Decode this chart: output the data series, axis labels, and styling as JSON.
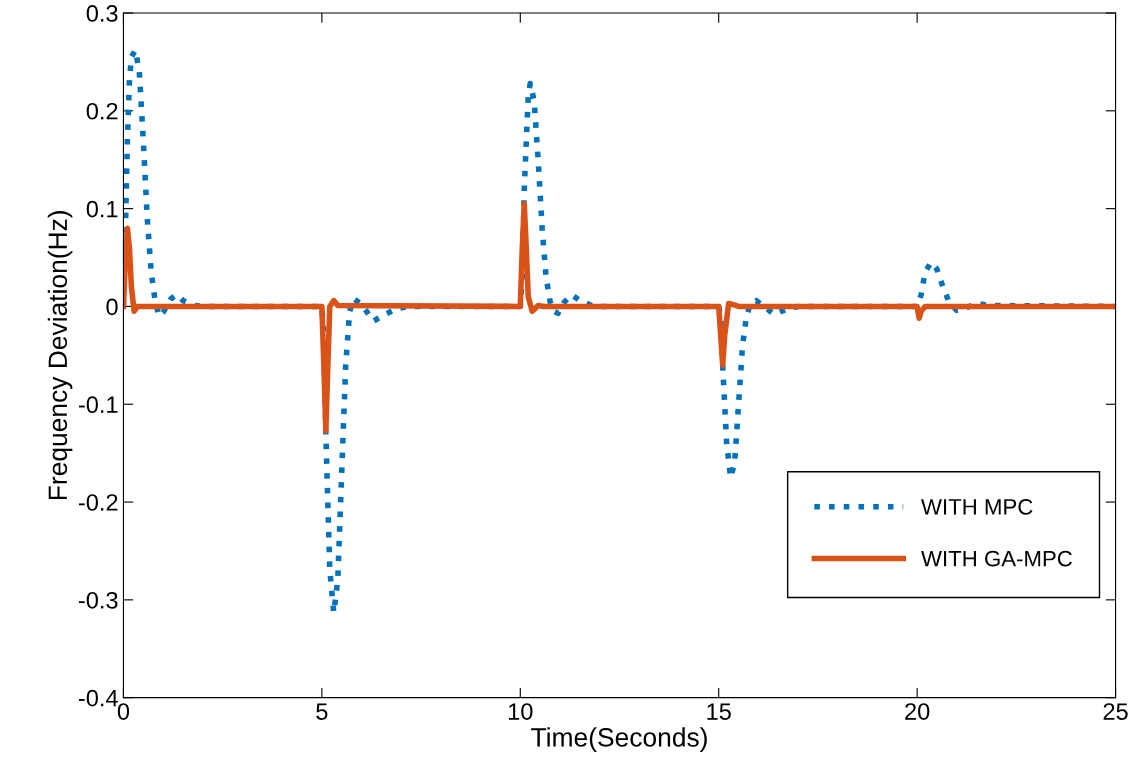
{
  "chart_data": {
    "type": "line",
    "xlabel": "Time(Seconds)",
    "ylabel": "Frequency Deviation(Hz)",
    "xlim": [
      0,
      25
    ],
    "ylim": [
      -0.4,
      0.3
    ],
    "xticks": [
      0,
      5,
      10,
      15,
      20,
      25
    ],
    "yticks": [
      -0.4,
      -0.3,
      -0.2,
      -0.1,
      0,
      0.1,
      0.2,
      0.3
    ],
    "grid": false,
    "legend": "bottom right",
    "series": [
      {
        "name": "WITH MPC",
        "color": "#0072bd",
        "line_style": "dotted",
        "x": [
          0,
          0.05,
          0.1,
          0.15,
          0.2,
          0.3,
          0.4,
          0.5,
          0.6,
          0.7,
          0.8,
          0.9,
          1.0,
          1.2,
          1.35,
          1.5,
          1.8,
          2.0,
          5.0,
          5.05,
          5.1,
          5.2,
          5.3,
          5.4,
          5.5,
          5.6,
          5.7,
          5.8,
          6.0,
          6.3,
          6.6,
          6.9,
          7.2,
          10.0,
          10.05,
          10.1,
          10.2,
          10.25,
          10.35,
          10.45,
          10.55,
          10.65,
          10.75,
          10.85,
          10.95,
          11.1,
          11.3,
          11.5,
          11.8,
          12.0,
          15.0,
          15.05,
          15.1,
          15.2,
          15.3,
          15.4,
          15.5,
          15.6,
          15.7,
          15.8,
          15.95,
          16.1,
          16.4,
          16.7,
          17.0,
          20.0,
          20.1,
          20.2,
          20.35,
          20.5,
          20.65,
          20.8,
          21.0,
          21.2,
          21.5,
          21.8,
          25
        ],
        "values": [
          0,
          0.08,
          0.17,
          0.23,
          0.255,
          0.262,
          0.24,
          0.17,
          0.09,
          0.035,
          0.005,
          -0.01,
          -0.006,
          0.008,
          0.012,
          0.006,
          0.001,
          0,
          0,
          -0.03,
          -0.13,
          -0.27,
          -0.313,
          -0.28,
          -0.17,
          -0.06,
          -0.005,
          0.008,
          0.002,
          -0.015,
          -0.008,
          -0.002,
          0,
          0,
          0.03,
          0.12,
          0.215,
          0.228,
          0.21,
          0.15,
          0.08,
          0.03,
          0.005,
          -0.005,
          -0.007,
          0.004,
          0.012,
          0.006,
          0.001,
          0,
          0,
          -0.01,
          -0.06,
          -0.14,
          -0.175,
          -0.16,
          -0.1,
          -0.04,
          -0.01,
          0.003,
          0.006,
          0.001,
          -0.008,
          -0.003,
          0,
          0,
          0.012,
          0.035,
          0.045,
          0.038,
          0.02,
          0.005,
          -0.004,
          -0.002,
          0.003,
          0.001,
          0
        ]
      },
      {
        "name": "WITH GA-MPC",
        "color": "#d95319",
        "line_style": "solid",
        "x": [
          0,
          0.05,
          0.1,
          0.15,
          0.2,
          0.27,
          0.35,
          0.5,
          5.0,
          5.05,
          5.1,
          5.15,
          5.2,
          5.3,
          5.4,
          10.0,
          10.05,
          10.1,
          10.15,
          10.2,
          10.3,
          10.45,
          10.6,
          15.0,
          15.05,
          15.1,
          15.15,
          15.25,
          15.35,
          15.5,
          20.0,
          20.05,
          20.1,
          20.2,
          25
        ],
        "values": [
          0,
          0.05,
          0.08,
          0.06,
          0.02,
          -0.005,
          0,
          0,
          0,
          -0.06,
          -0.127,
          -0.06,
          0,
          0.006,
          0.001,
          0,
          0.06,
          0.105,
          0.06,
          0.01,
          -0.005,
          0.001,
          0,
          0,
          -0.03,
          -0.06,
          -0.03,
          0.003,
          0.002,
          0,
          0,
          -0.012,
          -0.005,
          0,
          0
        ]
      }
    ]
  }
}
